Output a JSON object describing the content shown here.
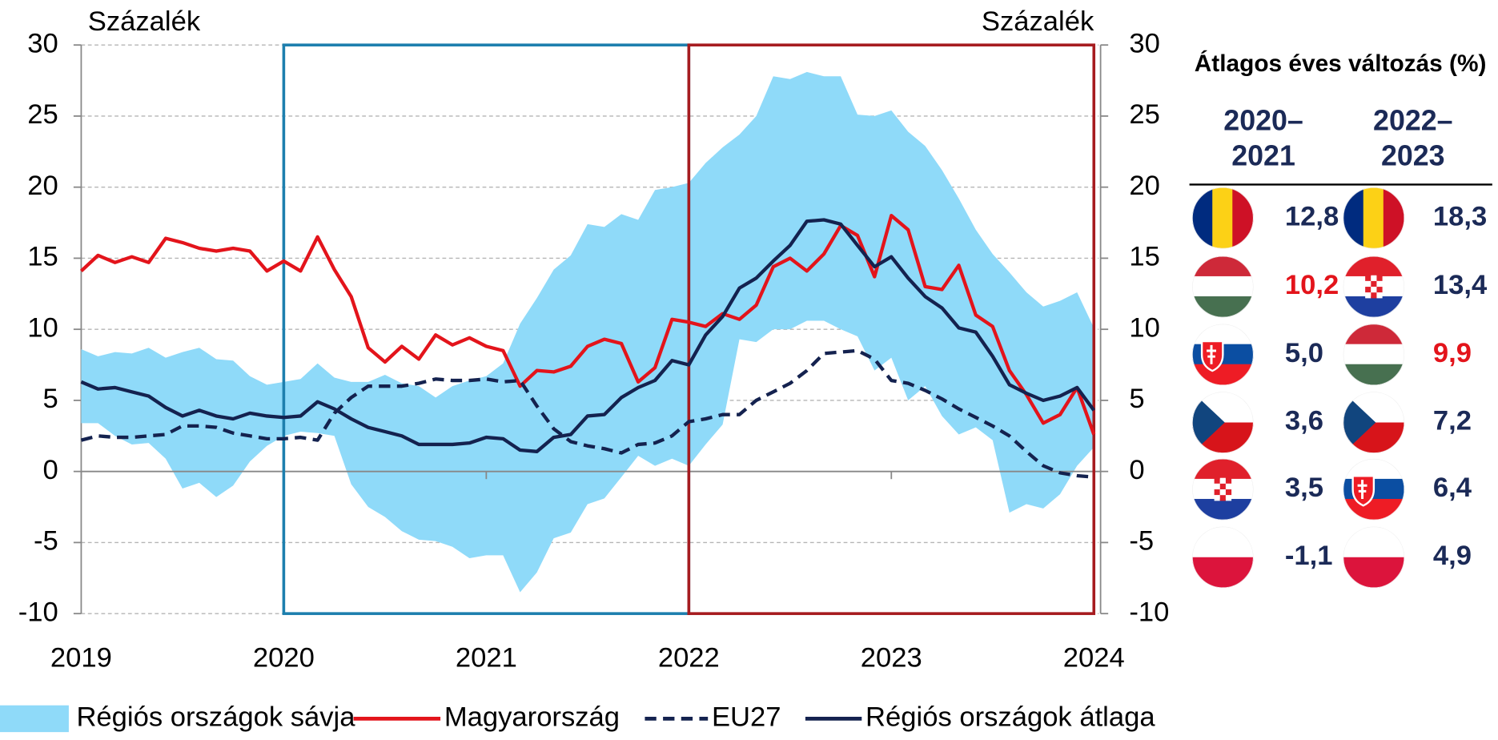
{
  "chart_data": {
    "type": "line",
    "ylabel": "Százalék",
    "y2label": "Százalék",
    "xlim": [
      2019,
      2024
    ],
    "xticks": [
      2019,
      2020,
      2021,
      2022,
      2023,
      2024
    ],
    "ylim": [
      -10,
      30
    ],
    "yticks": [
      -10,
      -5,
      0,
      5,
      10,
      15,
      20,
      25,
      30
    ],
    "y2lim": [
      -10,
      30
    ],
    "y2ticks": [
      -10,
      -5,
      0,
      5,
      10,
      15,
      20,
      25,
      30
    ],
    "grid": true,
    "legend": "bottom",
    "x": [
      2019,
      2019.083,
      2019.167,
      2019.25,
      2019.333,
      2019.417,
      2019.5,
      2019.583,
      2019.667,
      2019.75,
      2019.833,
      2019.917,
      2020,
      2020.083,
      2020.167,
      2020.25,
      2020.333,
      2020.417,
      2020.5,
      2020.583,
      2020.667,
      2020.75,
      2020.833,
      2020.917,
      2021,
      2021.083,
      2021.167,
      2021.25,
      2021.333,
      2021.417,
      2021.5,
      2021.583,
      2021.667,
      2021.75,
      2021.833,
      2021.917,
      2022,
      2022.083,
      2022.167,
      2022.25,
      2022.333,
      2022.417,
      2022.5,
      2022.583,
      2022.667,
      2022.75,
      2022.833,
      2022.917,
      2023,
      2023.083,
      2023.167,
      2023.25,
      2023.333,
      2023.417,
      2023.5,
      2023.583,
      2023.667,
      2023.75,
      2023.833,
      2023.917,
      2024
    ],
    "series": [
      {
        "name": "Régiós országok sávja",
        "color": "#8fdaf9",
        "type": "band",
        "upper": [
          8.6,
          8.1,
          8.4,
          8.3,
          8.7,
          8.0,
          8.4,
          8.7,
          7.9,
          7.8,
          6.7,
          6.1,
          6.3,
          6.5,
          7.6,
          6.6,
          6.3,
          6.3,
          6.8,
          6.2,
          6.0,
          5.2,
          6.0,
          6.4,
          6.7,
          7.6,
          10.4,
          12.2,
          14.2,
          15.2,
          17.4,
          17.2,
          18.1,
          17.7,
          19.8,
          20.0,
          20.3,
          21.7,
          22.8,
          23.7,
          25.0,
          27.8,
          27.6,
          28.1,
          27.8,
          27.8,
          25.1,
          25.0,
          25.4,
          23.9,
          22.9,
          21.2,
          19.2,
          17.0,
          15.3,
          14.0,
          12.6,
          11.6,
          12.0,
          12.6,
          10.1
        ],
        "lower": [
          3.4,
          3.4,
          2.5,
          1.9,
          2.0,
          0.9,
          -1.2,
          -0.8,
          -1.8,
          -1.0,
          0.7,
          1.8,
          2.5,
          2.8,
          2.7,
          2.5,
          -0.9,
          -2.5,
          -3.2,
          -4.2,
          -4.8,
          -4.9,
          -5.3,
          -6.1,
          -5.9,
          -5.9,
          -8.5,
          -7.1,
          -4.7,
          -4.3,
          -2.3,
          -1.9,
          -0.4,
          1.1,
          0.4,
          0.9,
          0.4,
          1.9,
          3.3,
          9.3,
          9.1,
          10.0,
          10.0,
          10.6,
          10.6,
          10.0,
          9.5,
          7.1,
          8.0,
          5.0,
          6.0,
          3.9,
          2.6,
          3.1,
          2.2,
          -2.9,
          -2.3,
          -2.6,
          -1.6,
          0.4,
          1.7
        ]
      },
      {
        "name": "Magyarország",
        "color": "#e3141b",
        "dash": false,
        "values": [
          14.1,
          15.2,
          14.7,
          15.1,
          14.7,
          16.4,
          16.1,
          15.7,
          15.5,
          15.7,
          15.5,
          14.1,
          14.8,
          14.1,
          16.5,
          14.2,
          12.3,
          8.7,
          7.7,
          8.8,
          7.9,
          9.6,
          8.9,
          9.4,
          8.8,
          8.5,
          6.0,
          7.1,
          7.0,
          7.4,
          8.8,
          9.3,
          9.0,
          6.3,
          7.3,
          10.7,
          10.5,
          10.2,
          11.1,
          10.7,
          11.7,
          14.4,
          15.0,
          14.1,
          15.3,
          17.3,
          16.6,
          13.7,
          18.0,
          17.0,
          13.0,
          12.8,
          14.5,
          11.0,
          10.2,
          7.1,
          5.4,
          3.4,
          4.0,
          5.9,
          2.6
        ]
      },
      {
        "name": "EU27",
        "color": "#14224f",
        "dash": true,
        "values": [
          2.2,
          2.5,
          2.4,
          2.4,
          2.5,
          2.6,
          3.2,
          3.2,
          3.1,
          2.7,
          2.5,
          2.3,
          2.3,
          2.4,
          2.2,
          4.1,
          5.2,
          6.0,
          6.0,
          6.0,
          6.2,
          6.5,
          6.4,
          6.4,
          6.5,
          6.3,
          6.4,
          4.6,
          3.0,
          2.1,
          1.8,
          1.6,
          1.3,
          1.9,
          2.0,
          2.5,
          3.5,
          3.7,
          4.0,
          4.0,
          5.0,
          5.6,
          6.2,
          7.1,
          8.3,
          8.4,
          8.5,
          7.9,
          6.4,
          6.2,
          5.7,
          5.1,
          4.4,
          3.8,
          3.2,
          2.5,
          1.4,
          0.4,
          -0.1,
          -0.3,
          -0.4
        ]
      },
      {
        "name": "Régiós országok átlaga",
        "color": "#14224f",
        "dash": false,
        "values": [
          6.3,
          5.8,
          5.9,
          5.6,
          5.3,
          4.5,
          3.9,
          4.3,
          3.9,
          3.7,
          4.1,
          3.9,
          3.8,
          3.9,
          4.9,
          4.4,
          3.7,
          3.1,
          2.8,
          2.5,
          1.9,
          1.9,
          1.9,
          2.0,
          2.4,
          2.3,
          1.5,
          1.4,
          2.4,
          2.6,
          3.9,
          4.0,
          5.2,
          5.9,
          6.4,
          7.8,
          7.5,
          9.6,
          10.9,
          12.9,
          13.6,
          14.8,
          15.9,
          17.6,
          17.7,
          17.4,
          15.9,
          14.4,
          15.1,
          13.6,
          12.3,
          11.5,
          10.1,
          9.8,
          8.1,
          6.1,
          5.5,
          5.0,
          5.3,
          5.9,
          4.3
        ]
      }
    ]
  },
  "table": {
    "title": "Átlagos éves változás (%)",
    "columns": [
      [
        "2020–",
        "2021"
      ],
      [
        "2022–",
        "2023"
      ]
    ],
    "rows": [
      [
        "12,8",
        "18,3"
      ],
      [
        "10,2",
        "13,4"
      ],
      [
        "5,0",
        "9,9"
      ],
      [
        "3,6",
        "7,2"
      ],
      [
        "3,5",
        "6,4"
      ],
      [
        "-1,1",
        "4,9"
      ]
    ]
  }
}
